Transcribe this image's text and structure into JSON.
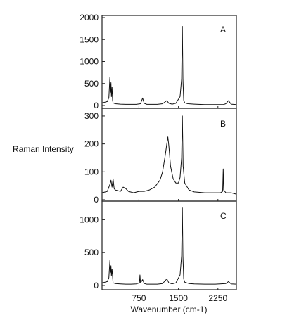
{
  "chart_data": {
    "type": "line",
    "ylabel": "Raman Intensity",
    "xlabel": "Wavenumber (cm-1)",
    "xlim": [
      50,
      2600
    ],
    "x_ticks": [
      "750",
      "1500",
      "2250"
    ],
    "x_tick_values": [
      750,
      1500,
      2250
    ],
    "grid": false,
    "panels": [
      {
        "label": "A",
        "ylim": [
          0,
          2000
        ],
        "y_ticks": [
          "2000",
          "1500",
          "1000",
          "500",
          "0"
        ],
        "y_tick_values": [
          2000,
          1500,
          1000,
          500,
          0
        ],
        "series": [
          {
            "x": [
              50,
              150,
              180,
              200,
              210,
              220,
              228,
              240,
              250,
              260,
              300,
              400,
              500,
              600,
              700,
              780,
              820,
              850,
              900,
              1000,
              1100,
              1200,
              1280,
              1320,
              1380,
              1450,
              1530,
              1560,
              1575,
              1585,
              1600,
              1620,
              1680,
              1800,
              2000,
              2200,
              2350,
              2400,
              2450,
              2500,
              2600
            ],
            "y": [
              60,
              90,
              180,
              650,
              300,
              520,
              200,
              420,
              120,
              60,
              40,
              30,
              25,
              25,
              25,
              40,
              170,
              50,
              25,
              25,
              25,
              40,
              110,
              50,
              30,
              50,
              200,
              600,
              1800,
              600,
              120,
              60,
              40,
              30,
              20,
              20,
              20,
              40,
              110,
              30,
              20
            ]
          }
        ]
      },
      {
        "label": "B",
        "ylim": [
          0,
          320
        ],
        "y_ticks": [
          "300",
          "200",
          "100",
          "0"
        ],
        "y_tick_values": [
          300,
          200,
          100,
          0
        ],
        "series": [
          {
            "x": [
              50,
              150,
              200,
              220,
              240,
              260,
              280,
              300,
              400,
              450,
              500,
              550,
              650,
              750,
              850,
              950,
              1050,
              1150,
              1200,
              1250,
              1280,
              1300,
              1320,
              1350,
              1400,
              1450,
              1500,
              1530,
              1560,
              1575,
              1590,
              1620,
              1700,
              1800,
              2000,
              2200,
              2300,
              2340,
              2350,
              2360,
              2400,
              2500,
              2600
            ],
            "y": [
              25,
              30,
              55,
              70,
              45,
              75,
              40,
              35,
              30,
              45,
              40,
              30,
              25,
              30,
              30,
              35,
              45,
              70,
              100,
              160,
              200,
              225,
              190,
              120,
              75,
              60,
              60,
              80,
              150,
              300,
              120,
              60,
              35,
              28,
              25,
              25,
              25,
              30,
              110,
              35,
              25,
              25,
              20
            ]
          }
        ]
      },
      {
        "label": "C",
        "ylim": [
          0,
          1250
        ],
        "y_ticks": [
          "1000",
          "500",
          "0"
        ],
        "y_tick_values": [
          1000,
          500,
          0
        ],
        "series": [
          {
            "x": [
              50,
              150,
              180,
              200,
              210,
              220,
              228,
              240,
              260,
              300,
              400,
              500,
              600,
              700,
              760,
              770,
              780,
              820,
              850,
              900,
              1000,
              1100,
              1200,
              1280,
              1320,
              1380,
              1450,
              1530,
              1560,
              1575,
              1585,
              1600,
              1620,
              1700,
              1800,
              2000,
              2200,
              2400,
              2450,
              2500,
              2600
            ],
            "y": [
              40,
              60,
              120,
              380,
              200,
              300,
              150,
              250,
              40,
              30,
              25,
              20,
              20,
              25,
              40,
              160,
              40,
              90,
              30,
              20,
              20,
              20,
              30,
              100,
              40,
              25,
              40,
              160,
              450,
              1180,
              450,
              100,
              50,
              30,
              25,
              20,
              20,
              30,
              60,
              25,
              20
            ]
          }
        ]
      }
    ]
  }
}
